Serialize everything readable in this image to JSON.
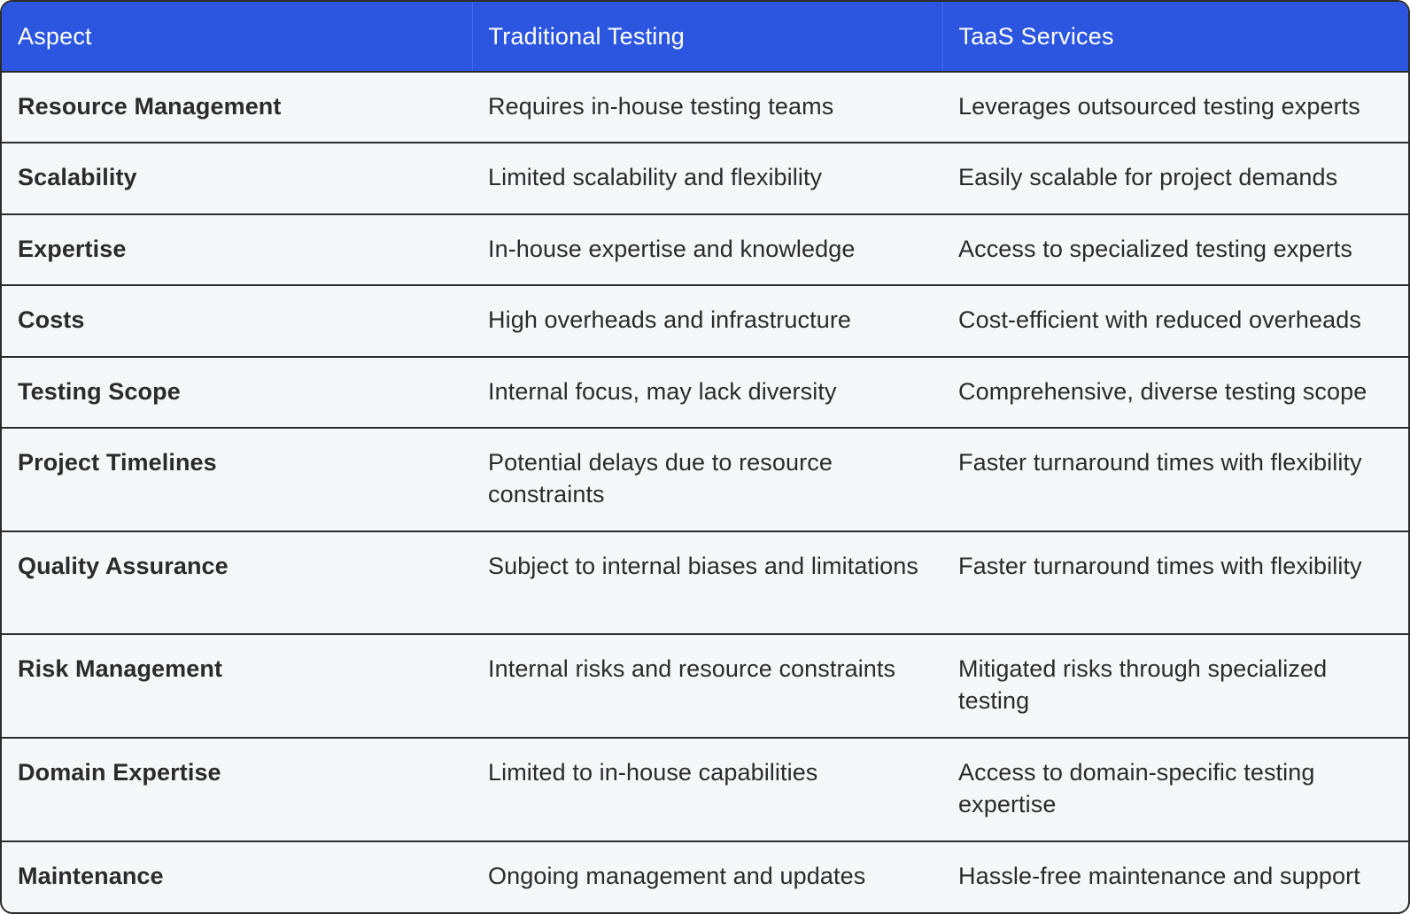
{
  "table": {
    "headers": [
      "Aspect",
      "Traditional Testing",
      "TaaS Services"
    ],
    "rows": [
      {
        "aspect": "Resource Management",
        "traditional": "Requires in-house testing teams",
        "taas": "Leverages outsourced testing experts"
      },
      {
        "aspect": "Scalability",
        "traditional": "Limited scalability and flexibility",
        "taas": "Easily scalable for project demands"
      },
      {
        "aspect": "Expertise",
        "traditional": "In-house expertise and knowledge",
        "taas": "Access to specialized testing experts"
      },
      {
        "aspect": "Costs",
        "traditional": "High overheads and infrastructure",
        "taas": "Cost-efficient with reduced overheads"
      },
      {
        "aspect": "Testing Scope",
        "traditional": "Internal focus, may lack diversity",
        "taas": "Comprehensive, diverse testing scope"
      },
      {
        "aspect": "Project Timelines",
        "traditional": "Potential delays due to resource constraints",
        "taas": "Faster turnaround times with flexibility"
      },
      {
        "aspect": "Quality Assurance",
        "traditional": "Subject to internal biases and limitations",
        "taas": "Faster turnaround times with flexibility"
      },
      {
        "aspect": "Risk Management",
        "traditional": "Internal risks and resource constraints",
        "taas": "Mitigated risks through specialized testing"
      },
      {
        "aspect": "Domain Expertise",
        "traditional": "Limited to in-house capabilities",
        "taas": "Access to domain-specific testing expertise"
      },
      {
        "aspect": "Maintenance",
        "traditional": "Ongoing management and updates",
        "taas": "Hassle-free maintenance and support"
      }
    ]
  },
  "colors": {
    "header_bg": "#2c56e0",
    "header_text": "#ffffff",
    "body_bg": "#f6f7f9",
    "border": "#2b2b2b",
    "text": "#2b2b2b"
  }
}
